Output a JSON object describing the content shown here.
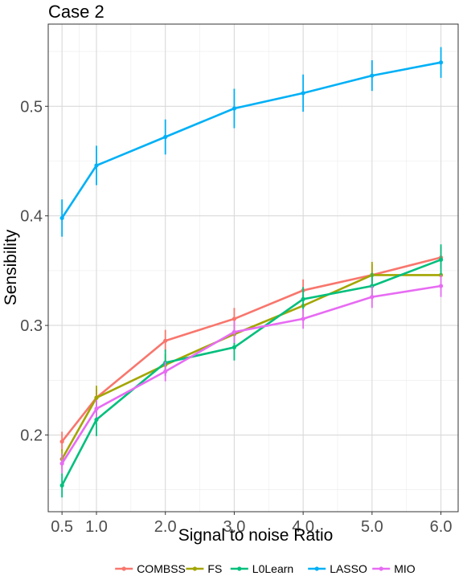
{
  "chart_data": {
    "type": "line",
    "title": "Case 2",
    "xlabel": "Signal to noise Ratio",
    "ylabel": "Sensibility",
    "x": [
      0.5,
      1.0,
      2.0,
      3.0,
      4.0,
      5.0,
      6.0
    ],
    "x_tick_labels": [
      "0.5",
      "1.0",
      "2.0",
      "3.0",
      "4.0",
      "5.0",
      "6.0"
    ],
    "y_ticks": [
      0.2,
      0.3,
      0.4,
      0.5
    ],
    "y_tick_labels": [
      "0.2",
      "0.3",
      "0.4",
      "0.5"
    ],
    "xlim": [
      0.3,
      6.25
    ],
    "ylim": [
      0.13,
      0.575
    ],
    "grid": true,
    "legend_position": "bottom",
    "series": [
      {
        "name": "COMBSS",
        "color": "#F8766D",
        "values": [
          0.194,
          0.234,
          0.286,
          0.306,
          0.332,
          0.346,
          0.362
        ],
        "lower": [
          0.185,
          0.226,
          0.276,
          0.296,
          0.322,
          0.336,
          0.352
        ],
        "upper": [
          0.203,
          0.242,
          0.296,
          0.316,
          0.342,
          0.356,
          0.372
        ]
      },
      {
        "name": "FS",
        "color": "#A3A500",
        "values": [
          0.178,
          0.234,
          0.264,
          0.292,
          0.318,
          0.346,
          0.346
        ],
        "lower": [
          0.169,
          0.223,
          0.254,
          0.282,
          0.308,
          0.334,
          0.346
        ],
        "upper": [
          0.187,
          0.245,
          0.274,
          0.302,
          0.328,
          0.358,
          0.346
        ]
      },
      {
        "name": "L0Learn",
        "color": "#00BF7D",
        "values": [
          0.154,
          0.214,
          0.266,
          0.28,
          0.324,
          0.336,
          0.36
        ],
        "lower": [
          0.143,
          0.199,
          0.254,
          0.268,
          0.313,
          0.324,
          0.346
        ],
        "upper": [
          0.165,
          0.229,
          0.278,
          0.292,
          0.335,
          0.348,
          0.374
        ]
      },
      {
        "name": "LASSO",
        "color": "#00B0F6",
        "values": [
          0.398,
          0.446,
          0.472,
          0.498,
          0.512,
          0.528,
          0.54
        ],
        "lower": [
          0.381,
          0.428,
          0.456,
          0.48,
          0.495,
          0.514,
          0.526
        ],
        "upper": [
          0.415,
          0.464,
          0.488,
          0.516,
          0.529,
          0.542,
          0.554
        ]
      },
      {
        "name": "MIO",
        "color": "#E76BF3",
        "values": [
          0.174,
          0.224,
          0.258,
          0.294,
          0.306,
          0.326,
          0.336
        ],
        "lower": [
          0.165,
          0.216,
          0.249,
          0.284,
          0.297,
          0.316,
          0.326
        ],
        "upper": [
          0.183,
          0.232,
          0.267,
          0.304,
          0.315,
          0.336,
          0.346
        ]
      }
    ]
  }
}
